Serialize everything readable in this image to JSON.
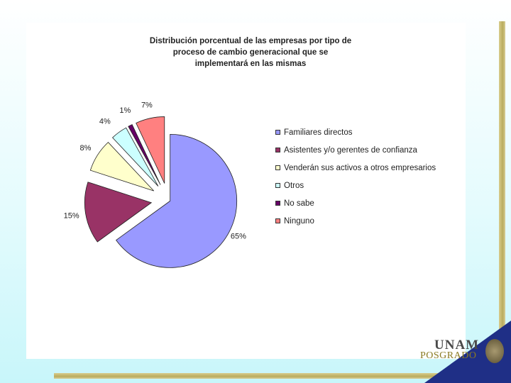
{
  "chart_data": {
    "type": "pie",
    "title": "Distribución porcentual de las empresas por tipo de proceso de cambio generacional que se implementará en las mismas",
    "title_lines": [
      "Distribución porcentual de las empresas por tipo de",
      "proceso de cambio generacional que se",
      "implementará en las mismas"
    ],
    "exploded": true,
    "legend_position": "right",
    "slices": [
      {
        "label": "Familiares directos",
        "value": 65,
        "value_label": "65%",
        "color": "#9999ff"
      },
      {
        "label": "Asistentes y/o gerentes de confianza",
        "value": 15,
        "value_label": "15%",
        "color": "#993366"
      },
      {
        "label": "Venderán sus activos a otros empresarios",
        "value": 8,
        "value_label": "8%",
        "color": "#ffffcc"
      },
      {
        "label": "Otros",
        "value": 4,
        "value_label": "4%",
        "color": "#ccffff"
      },
      {
        "label": "No sabe",
        "value": 1,
        "value_label": "1%",
        "color": "#660066"
      },
      {
        "label": "Ninguno",
        "value": 7,
        "value_label": "7%",
        "color": "#ff8080"
      }
    ]
  },
  "logo": {
    "top_text": "UNAM",
    "bottom_text": "POSGRADO"
  }
}
